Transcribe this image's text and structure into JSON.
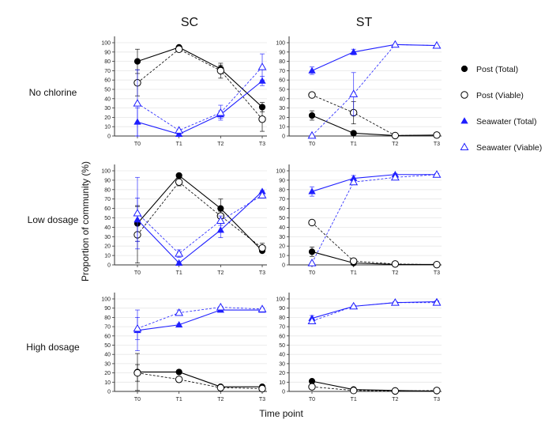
{
  "chart_data": {
    "type": "line",
    "column_titles": [
      "SC",
      "ST"
    ],
    "row_titles": [
      "No chlorine",
      "Low dosage",
      "High dosage"
    ],
    "xlabel": "Time point",
    "ylabel": "Proportion of community (%)",
    "categories": [
      "T0",
      "T1",
      "T2",
      "T3"
    ],
    "ylim": [
      0,
      100
    ],
    "yticks": [
      "0",
      "10",
      "20",
      "30",
      "40",
      "50",
      "60",
      "70",
      "80",
      "90",
      "100"
    ],
    "grid": true,
    "legend_placement": "right",
    "colors": {
      "post": "#000000",
      "seawater": "#1f1fff",
      "grid": "#e6e6e6"
    },
    "legend": [
      {
        "name": "Post (Total)",
        "color": "#000000",
        "marker": "circle-filled",
        "dash": false
      },
      {
        "name": "Post (Viable)",
        "color": "#000000",
        "marker": "circle-open",
        "dash": true
      },
      {
        "name": "Seawater (Total)",
        "color": "#1f1fff",
        "marker": "triangle-filled",
        "dash": false
      },
      {
        "name": "Seawater (Viable)",
        "color": "#1f1fff",
        "marker": "triangle-open",
        "dash": true
      }
    ],
    "panels": [
      {
        "row": "No chlorine",
        "col": "SC",
        "series": [
          {
            "name": "Post (Total)",
            "values": [
              80,
              95,
              72,
              31
            ],
            "err": [
              13,
              1,
              4,
              5
            ]
          },
          {
            "name": "Post (Viable)",
            "values": [
              57,
              93,
              70,
              18
            ],
            "err": [
              14,
              1,
              8,
              13
            ]
          },
          {
            "name": "Seawater (Total)",
            "values": [
              15,
              2,
              23,
              59
            ],
            "err": [
              15,
              1,
              4,
              5
            ]
          },
          {
            "name": "Seawater (Viable)",
            "values": [
              35,
              6,
              25,
              74
            ],
            "err": [
              36,
              1,
              8,
              14
            ]
          }
        ]
      },
      {
        "row": "No chlorine",
        "col": "ST",
        "series": [
          {
            "name": "Post (Total)",
            "values": [
              22,
              3,
              0.5,
              1
            ],
            "err": [
              5,
              1,
              0,
              0
            ]
          },
          {
            "name": "Post (Viable)",
            "values": [
              44,
              25,
              0.5,
              1
            ],
            "err": [
              2,
              12,
              0,
              0
            ]
          },
          {
            "name": "Seawater (Total)",
            "values": [
              70,
              90,
              98,
              97
            ],
            "err": [
              4,
              3,
              0,
              0
            ]
          },
          {
            "name": "Seawater (Viable)",
            "values": [
              0.5,
              45,
              98,
              97
            ],
            "err": [
              0,
              23,
              0,
              0
            ]
          }
        ]
      },
      {
        "row": "Low dosage",
        "col": "SC",
        "series": [
          {
            "name": "Post (Total)",
            "values": [
              44,
              95,
              60,
              15
            ],
            "err": [
              19,
              1,
              10,
              1
            ]
          },
          {
            "name": "Post (Viable)",
            "values": [
              32,
              88,
              52,
              18
            ],
            "err": [
              30,
              4,
              5,
              5
            ]
          },
          {
            "name": "Seawater (Total)",
            "values": [
              48,
              2,
              37,
              78
            ],
            "err": [
              23,
              1,
              8,
              1
            ]
          },
          {
            "name": "Seawater (Viable)",
            "values": [
              55,
              12,
              47,
              74
            ],
            "err": [
              38,
              4,
              5,
              3
            ]
          }
        ]
      },
      {
        "row": "Low dosage",
        "col": "ST",
        "series": [
          {
            "name": "Post (Total)",
            "values": [
              14,
              2,
              0.5,
              0.5
            ],
            "err": [
              5,
              1,
              0,
              0
            ]
          },
          {
            "name": "Post (Viable)",
            "values": [
              45,
              4,
              1,
              0.3
            ],
            "err": [
              1,
              1,
              0,
              0
            ]
          },
          {
            "name": "Seawater (Total)",
            "values": [
              78,
              92,
              96,
              96
            ],
            "err": [
              5,
              3,
              1,
              1
            ]
          },
          {
            "name": "Seawater (Viable)",
            "values": [
              2,
              88,
              93,
              96
            ],
            "err": [
              0,
              1,
              1,
              1
            ]
          }
        ]
      },
      {
        "row": "High dosage",
        "col": "SC",
        "series": [
          {
            "name": "Post (Total)",
            "values": [
              21,
              21,
              5,
              5
            ],
            "err": [
              20,
              1,
              1,
              1
            ]
          },
          {
            "name": "Post (Viable)",
            "values": [
              20,
              13,
              4,
              3
            ],
            "err": [
              9,
              3,
              1,
              1
            ]
          },
          {
            "name": "Seawater (Total)",
            "values": [
              66,
              72,
              88,
              88
            ],
            "err": [
              22,
              1,
              2,
              1
            ]
          },
          {
            "name": "Seawater (Viable)",
            "values": [
              68,
              85,
              91,
              89
            ],
            "err": [
              12,
              3,
              1,
              1
            ]
          }
        ]
      },
      {
        "row": "High dosage",
        "col": "ST",
        "series": [
          {
            "name": "Post (Total)",
            "values": [
              11,
              2,
              1,
              0.3
            ],
            "err": [
              1,
              1,
              0,
              0
            ]
          },
          {
            "name": "Post (Viable)",
            "values": [
              5,
              1,
              0.5,
              1
            ],
            "err": [
              2,
              0,
              0,
              0
            ]
          },
          {
            "name": "Seawater (Total)",
            "values": [
              79,
              92,
              96,
              97
            ],
            "err": [
              3,
              1,
              1,
              1
            ]
          },
          {
            "name": "Seawater (Viable)",
            "values": [
              76,
              92,
              96,
              96
            ],
            "err": [
              2,
              1,
              1,
              1
            ]
          }
        ]
      }
    ]
  }
}
